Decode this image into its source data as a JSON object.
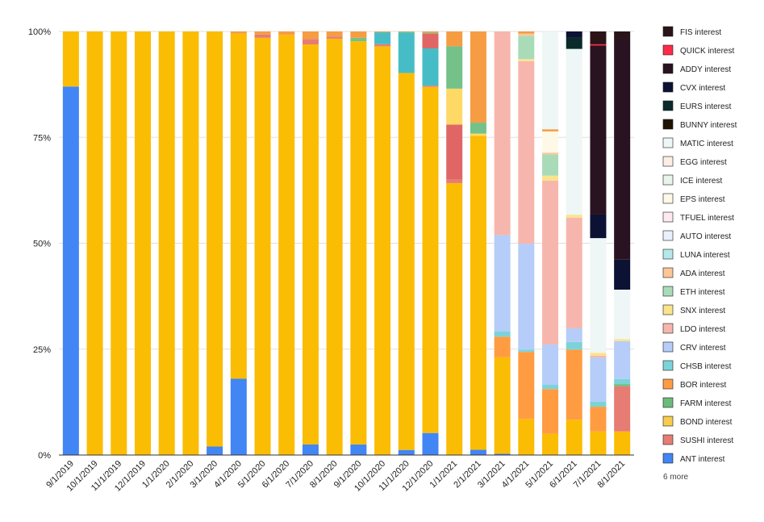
{
  "chart_data": {
    "type": "bar",
    "stacked": true,
    "percent": true,
    "ylim": [
      0,
      100
    ],
    "y_ticks": [
      "0%",
      "25%",
      "50%",
      "75%",
      "100%"
    ],
    "y_tick_values": [
      0,
      25,
      50,
      75,
      100
    ],
    "categories": [
      "9/1/2019",
      "10/1/2019",
      "11/1/2019",
      "12/1/2019",
      "1/1/2020",
      "2/1/2020",
      "3/1/2020",
      "4/1/2020",
      "5/1/2020",
      "6/1/2020",
      "7/1/2020",
      "8/1/2020",
      "9/1/2020",
      "10/1/2020",
      "11/1/2020",
      "12/1/2020",
      "1/1/2021",
      "2/1/2021",
      "3/1/2021",
      "4/1/2021",
      "5/1/2021",
      "6/1/2021",
      "7/1/2021",
      "8/1/2021"
    ],
    "legend_more": "6 more",
    "legend_position": "right",
    "series": [
      {
        "name": "ANT interest",
        "color": "#4285f4",
        "values": [
          87,
          0,
          0,
          0,
          0,
          0,
          2,
          18,
          0,
          0,
          2.5,
          0,
          2.5,
          0,
          1.2,
          5.2,
          0,
          1.2,
          0.3,
          0,
          0,
          0,
          0,
          0
        ]
      },
      {
        "name": "SUSHI interest",
        "color": "#e67c73",
        "values": [
          0,
          0,
          0,
          0,
          0,
          0,
          0,
          0,
          0.8,
          0,
          1.3,
          0.5,
          0,
          0.5,
          0,
          0.3,
          0.8,
          0,
          0,
          0,
          0,
          0,
          0,
          10.5
        ]
      },
      {
        "name": "BOND interest",
        "color": "#f7cb4d",
        "values": [
          0,
          0,
          0,
          0,
          0,
          0,
          0,
          0,
          0,
          0,
          0,
          0,
          0,
          0,
          0,
          0,
          0,
          0,
          0,
          0,
          0,
          0,
          0,
          0
        ]
      },
      {
        "name": "FARM interest",
        "color": "#6dbb7c",
        "values": [
          0,
          0,
          0,
          0,
          0,
          0,
          0,
          0,
          0,
          0,
          0,
          0,
          0,
          0,
          0,
          0,
          0,
          0,
          0,
          0,
          0,
          0,
          0,
          0.5
        ]
      },
      {
        "name": "BOR interest",
        "color": "#ff9c42",
        "values": [
          0,
          0,
          0,
          0,
          0,
          0,
          0,
          0,
          0,
          0,
          0,
          0,
          0,
          0,
          0,
          0,
          0,
          0,
          4.8,
          15.8,
          10.5,
          16.5,
          5.8,
          0
        ]
      },
      {
        "name": "CHSB interest",
        "color": "#7bd3d8",
        "values": [
          0,
          0,
          0,
          0,
          0,
          0,
          0,
          0,
          0,
          0,
          0,
          0,
          0,
          0,
          0,
          0,
          0,
          0,
          1.2,
          0.5,
          1,
          1.8,
          1.2,
          1.2
        ]
      },
      {
        "name": "CRV interest",
        "color": "#b5cdf8",
        "values": [
          0,
          0,
          0,
          0,
          0,
          0,
          0,
          0,
          0,
          0,
          0,
          0,
          0,
          0,
          0,
          0,
          0,
          0,
          22.5,
          25,
          9.5,
          3.2,
          10.3,
          8.8
        ]
      },
      {
        "name": "LDO interest",
        "color": "#f7b6ad",
        "values": [
          0,
          0,
          0,
          0,
          0,
          0,
          0,
          0,
          0,
          0,
          0,
          0,
          0,
          0,
          0,
          0,
          0,
          0,
          47.5,
          43,
          38.5,
          26,
          0.4,
          0
        ]
      },
      {
        "name": "SNX interest",
        "color": "#fbe38b",
        "values": [
          0,
          0,
          0,
          0,
          0,
          0,
          0,
          0,
          0,
          0,
          0,
          0,
          0,
          0,
          0,
          0,
          0,
          0,
          0,
          0.5,
          1.2,
          0.7,
          0.7,
          0.5
        ]
      },
      {
        "name": "ETH interest",
        "color": "#a9dbb8",
        "values": [
          0,
          0,
          0,
          0,
          0,
          0,
          0,
          0,
          0,
          0,
          0,
          0,
          0,
          0,
          0,
          0,
          0,
          0,
          0,
          5.5,
          5,
          0,
          0,
          0
        ]
      },
      {
        "name": "ADA interest",
        "color": "#fbc698",
        "values": [
          0,
          0,
          0,
          0,
          0,
          0,
          0,
          0,
          0,
          0,
          0,
          0,
          0,
          0,
          0,
          0,
          0,
          0,
          0,
          0.5,
          0.4,
          0,
          0,
          0
        ]
      },
      {
        "name": "LUNA interest",
        "color": "#b6e8ea",
        "values": [
          0,
          0,
          0,
          0,
          0,
          0,
          0,
          0,
          0,
          0,
          0,
          0,
          0,
          0,
          0,
          0,
          0,
          0,
          0,
          0,
          0,
          0,
          0,
          0
        ]
      },
      {
        "name": "AUTO interest",
        "color": "#eaf1fe",
        "values": [
          0,
          0,
          0,
          0,
          0,
          0,
          0,
          0,
          0,
          0,
          0,
          0,
          0,
          0,
          0,
          0,
          0,
          0,
          0,
          0,
          0,
          0,
          0,
          0
        ]
      },
      {
        "name": "TFUEL interest",
        "color": "#fde9ee",
        "values": [
          0,
          0,
          0,
          0,
          0,
          0,
          0,
          0,
          0,
          0,
          0,
          0,
          0,
          0,
          0,
          0,
          0,
          0,
          0,
          0,
          0,
          0,
          0,
          0
        ]
      },
      {
        "name": "EPS interest",
        "color": "#fef8e6",
        "values": [
          0,
          0,
          0,
          0,
          0,
          0,
          0,
          0,
          0,
          0,
          0,
          0,
          0,
          0,
          0,
          0,
          0,
          0,
          0,
          0,
          5,
          0,
          0,
          0
        ]
      },
      {
        "name": "ICE interest",
        "color": "#e9f5ec",
        "values": [
          0,
          0,
          0,
          0,
          0,
          0,
          0,
          0,
          0,
          0,
          0,
          0,
          0,
          0,
          0,
          0,
          0,
          0,
          0,
          0,
          0,
          0,
          0,
          0
        ]
      },
      {
        "name": "EGG interest",
        "color": "#fdeee5",
        "values": [
          0,
          0,
          0,
          0,
          0,
          0,
          0,
          0,
          0,
          0,
          0,
          0,
          0,
          0,
          0,
          0,
          0,
          0,
          0,
          0,
          0,
          0,
          0,
          0
        ]
      },
      {
        "name": "MATIC interest",
        "color": "#eef6f6",
        "values": [
          0,
          0,
          0,
          0,
          0,
          0,
          0,
          0,
          0,
          0,
          0,
          0,
          0,
          0,
          0,
          0,
          0,
          0,
          0,
          0,
          23,
          39,
          26.8,
          11.5
        ]
      },
      {
        "name": "BUNNY interest",
        "color": "#1e1400",
        "values": [
          0,
          0,
          0,
          0,
          0,
          0,
          0,
          0,
          0,
          0,
          0,
          0,
          0,
          0,
          0,
          0,
          0,
          0,
          0,
          0,
          0,
          0,
          0,
          0
        ]
      },
      {
        "name": "EURS interest",
        "color": "#0b2a2a",
        "values": [
          0,
          0,
          0,
          0,
          0,
          0,
          0,
          0,
          0,
          0,
          0,
          0,
          0,
          0,
          0,
          0,
          0,
          0,
          0,
          0,
          0,
          2.6,
          0,
          0
        ]
      },
      {
        "name": "CVX interest",
        "color": "#0b1233",
        "values": [
          0,
          0,
          0,
          0,
          0,
          0,
          0,
          0,
          0,
          0,
          0,
          0,
          0,
          0,
          0,
          0,
          0,
          0,
          0,
          0,
          0,
          1.5,
          5.5,
          7
        ]
      },
      {
        "name": "ADDY interest",
        "color": "#2a1320",
        "values": [
          0,
          0,
          0,
          0,
          0,
          0,
          0,
          0,
          0,
          0,
          0,
          0,
          0,
          0,
          0,
          0,
          0,
          0,
          0,
          0,
          0,
          0,
          39.5,
          51.5
        ]
      },
      {
        "name": "QUICK interest",
        "color": "#ff2a47",
        "values": [
          0,
          0,
          0,
          0,
          0,
          0,
          0,
          0,
          0,
          0,
          0,
          0,
          0,
          0,
          0,
          0,
          0,
          0,
          0,
          0,
          0,
          0,
          0.3,
          0
        ]
      },
      {
        "name": "FIS interest",
        "color": "#2a1418",
        "values": [
          0,
          0,
          0,
          0,
          0,
          0,
          0,
          0,
          0,
          0,
          0,
          0,
          0,
          0,
          0,
          0,
          0,
          0,
          0,
          0,
          0,
          0,
          3,
          1.6
        ]
      }
    ],
    "unlisted_series": [
      {
        "color": "#fbbc04",
        "values": [
          13,
          100,
          100,
          100,
          100,
          100,
          98,
          81.5,
          98.5,
          99.2,
          95.4,
          98.3,
          95.2,
          96.5,
          89,
          81.7,
          64.2,
          72.3,
          22.5,
          8.5,
          5,
          8.3,
          5.5,
          5.5
        ]
      },
      {
        "color": "#46bdc6",
        "values": [
          0,
          0,
          0,
          0,
          0,
          0,
          0,
          0,
          0,
          0,
          0,
          0,
          0,
          2.8,
          9.5,
          8.8,
          0,
          0,
          0,
          0,
          0,
          0,
          0,
          0
        ]
      },
      {
        "color": "#e06666",
        "values": [
          0,
          0,
          0,
          0,
          0,
          0,
          0,
          0,
          0,
          0,
          0,
          0,
          0,
          0,
          0,
          3.5,
          13,
          0,
          0,
          0,
          0,
          0,
          0,
          0
        ]
      },
      {
        "color": "#ffd966",
        "values": [
          0,
          0,
          0,
          0,
          0,
          0,
          0,
          0,
          0,
          0,
          0,
          0,
          0,
          0,
          0,
          0,
          8.5,
          0.5,
          0,
          0,
          0,
          0,
          0,
          0
        ]
      },
      {
        "color": "#74c18a",
        "values": [
          0,
          0,
          0,
          0,
          0,
          0,
          0,
          0,
          0,
          0,
          0,
          0,
          0.8,
          0,
          0.2,
          0.2,
          10,
          2.5,
          0,
          0,
          0,
          0,
          0,
          0
        ]
      },
      {
        "color": "#f69c43",
        "values": [
          0,
          0,
          0,
          0,
          0,
          0,
          0,
          0.5,
          0.7,
          0.8,
          1.8,
          1.2,
          1.5,
          0.2,
          0.1,
          0.3,
          3.5,
          21,
          0,
          0.5,
          0.5,
          0,
          0,
          0
        ]
      }
    ]
  }
}
